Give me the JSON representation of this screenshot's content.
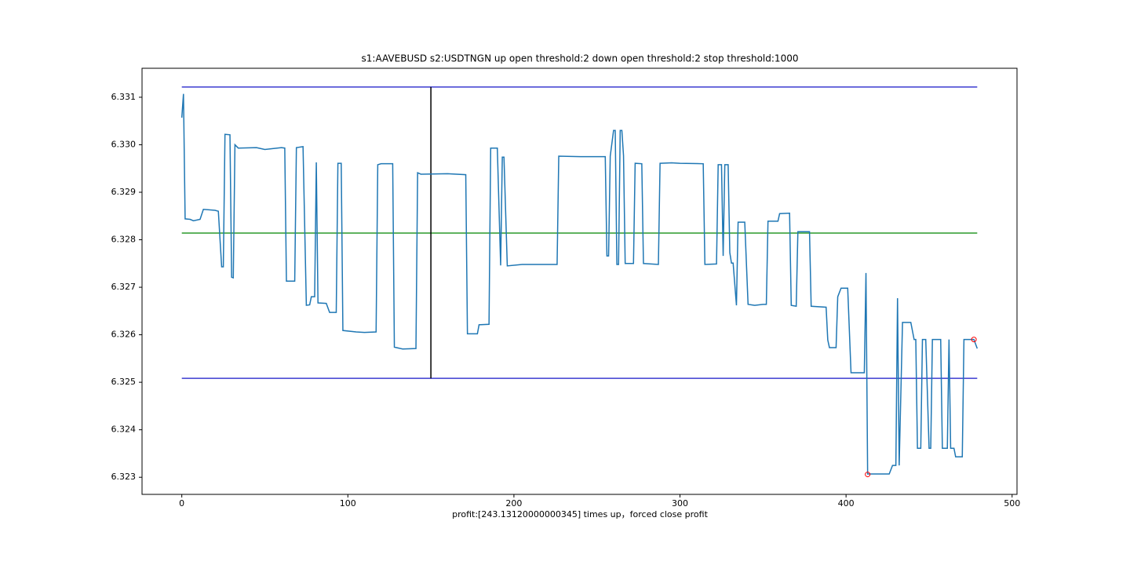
{
  "chart_data": {
    "type": "line",
    "title": "s1:AAVEBUSD s2:USDTNGN up open threshold:2 down open threshold:2 stop threshold:1000",
    "x_label": "profit:[243.13120000000345] times up，forced close profit",
    "xlim": [
      -23.95,
      502.95
    ],
    "xticks": [
      0,
      100,
      200,
      300,
      400,
      500
    ],
    "ylim": [
      6.32264,
      6.33161
    ],
    "yticks": [
      6.323,
      6.324,
      6.325,
      6.326,
      6.327,
      6.328,
      6.329,
      {
        "value": 6.33,
        "label": "6.330"
      },
      6.331
    ],
    "series": [
      {
        "color": "#1f77b4",
        "x": [
          0,
          1,
          2,
          5,
          7,
          11,
          13,
          20,
          22,
          24,
          25,
          26,
          29,
          30,
          31,
          32,
          34,
          45,
          50,
          60,
          62,
          63,
          68,
          69,
          73,
          75,
          77,
          78,
          80,
          81,
          82,
          87,
          89,
          93,
          94,
          96,
          97,
          105,
          110,
          117,
          118,
          120,
          127,
          128,
          133,
          141,
          142,
          144,
          160,
          171,
          172,
          178,
          179,
          185,
          186,
          190,
          192,
          193,
          194,
          196,
          205,
          215,
          226,
          227,
          240,
          255,
          256,
          257,
          258,
          260,
          261,
          262,
          263,
          264,
          265,
          266,
          267,
          272,
          273,
          277,
          278,
          287,
          288,
          295,
          300,
          314,
          315,
          322,
          323,
          325,
          326,
          327,
          329,
          330,
          331,
          332,
          334,
          335,
          339,
          341,
          345,
          350,
          352,
          353,
          359,
          360,
          366,
          367,
          370,
          371,
          378,
          379,
          388,
          389,
          390,
          394,
          395,
          397,
          401,
          403,
          411,
          412,
          413,
          420,
          426,
          428,
          430,
          431,
          432,
          434,
          439,
          441,
          442,
          443,
          445,
          446,
          448,
          450,
          451,
          452,
          457,
          458,
          461,
          462,
          463,
          465,
          466,
          470,
          471,
          477,
          479
        ],
        "values": [
          6.33057,
          6.33107,
          6.32844,
          6.32843,
          6.3284,
          6.32843,
          6.32864,
          6.32862,
          6.3286,
          6.32743,
          6.32743,
          6.33022,
          6.33021,
          6.32721,
          6.3272,
          6.33,
          6.32993,
          6.32994,
          6.3299,
          6.32994,
          6.32993,
          6.32713,
          6.32713,
          6.32994,
          6.32996,
          6.32662,
          6.32663,
          6.3268,
          6.3268,
          6.32963,
          6.32667,
          6.32666,
          6.32647,
          6.32647,
          6.32961,
          6.32961,
          6.32609,
          6.32606,
          6.32605,
          6.32606,
          6.32958,
          6.3296,
          6.3296,
          6.32574,
          6.3257,
          6.32571,
          6.32941,
          6.32938,
          6.32939,
          6.32937,
          6.32602,
          6.32602,
          6.32621,
          6.32622,
          6.32993,
          6.32993,
          6.32746,
          6.32974,
          6.32974,
          6.32745,
          6.32748,
          6.32748,
          6.32748,
          6.32976,
          6.32975,
          6.32975,
          6.32766,
          6.32766,
          6.32976,
          6.3303,
          6.3303,
          6.32748,
          6.32748,
          6.3303,
          6.3303,
          6.32977,
          6.3275,
          6.3275,
          6.32961,
          6.3296,
          6.3275,
          6.32748,
          6.32961,
          6.32962,
          6.32961,
          6.3296,
          6.32748,
          6.32749,
          6.32958,
          6.32958,
          6.32766,
          6.32958,
          6.32958,
          6.32773,
          6.32751,
          6.32751,
          6.32662,
          6.32837,
          6.32837,
          6.32664,
          6.32662,
          6.32664,
          6.32664,
          6.32839,
          6.32839,
          6.32855,
          6.32856,
          6.32662,
          6.3266,
          6.32817,
          6.32817,
          6.3266,
          6.32658,
          6.32589,
          6.32573,
          6.32573,
          6.3268,
          6.32698,
          6.32698,
          6.3252,
          6.3252,
          6.3273,
          6.32307,
          6.32307,
          6.32307,
          6.32325,
          6.32325,
          6.32677,
          6.32325,
          6.32626,
          6.32626,
          6.3259,
          6.3259,
          6.32361,
          6.32361,
          6.3259,
          6.3259,
          6.32361,
          6.32361,
          6.3259,
          6.3259,
          6.32361,
          6.32361,
          6.3259,
          6.32361,
          6.32361,
          6.32343,
          6.32343,
          6.3259,
          6.3259,
          6.32571
        ]
      }
    ],
    "hlines": [
      {
        "y": 6.331215,
        "xmin": 0,
        "xmax": 479,
        "color": "#3b3bd1"
      },
      {
        "y": 6.32814,
        "xmin": 0,
        "xmax": 479,
        "color": "#2a9a2a"
      },
      {
        "y": 6.325083,
        "xmin": 0,
        "xmax": 479,
        "color": "#3b3bd1"
      }
    ],
    "vlines": [
      {
        "x": 150,
        "ymin": 6.325083,
        "ymax": 6.331215,
        "color": "#000000"
      }
    ],
    "markers": {
      "x": [
        413,
        477
      ],
      "y": [
        6.32306,
        6.3259
      ],
      "color": "#ff0000"
    }
  }
}
